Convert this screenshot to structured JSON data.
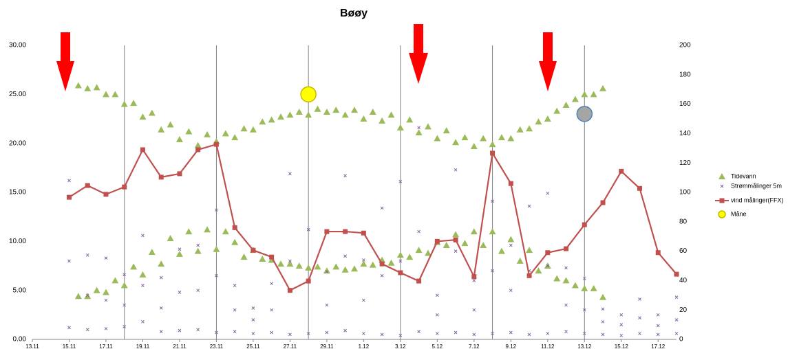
{
  "chart_data": {
    "type": "line",
    "title": "Bøøy",
    "xlim": [
      0,
      35
    ],
    "xticks": [
      {
        "value": 0,
        "label": "13.11"
      },
      {
        "value": 2,
        "label": "15.11"
      },
      {
        "value": 4,
        "label": "17.11"
      },
      {
        "value": 6,
        "label": "19.11"
      },
      {
        "value": 8,
        "label": "21.11"
      },
      {
        "value": 10,
        "label": "23.11"
      },
      {
        "value": 12,
        "label": "25.11"
      },
      {
        "value": 14,
        "label": "27.11"
      },
      {
        "value": 16,
        "label": "29.11"
      },
      {
        "value": 18,
        "label": "1.12"
      },
      {
        "value": 20,
        "label": "3.12"
      },
      {
        "value": 22,
        "label": "5.12"
      },
      {
        "value": 24,
        "label": "7.12"
      },
      {
        "value": 26,
        "label": "9.12"
      },
      {
        "value": 28,
        "label": "11.12"
      },
      {
        "value": 30,
        "label": "13.12"
      },
      {
        "value": 32,
        "label": "15.12"
      },
      {
        "value": 34,
        "label": "17.12"
      }
    ],
    "xgrid": [
      5,
      10,
      15,
      20,
      25,
      30
    ],
    "ylim": [
      0,
      30
    ],
    "yticks": [
      {
        "value": 0,
        "label": "0.00"
      },
      {
        "value": 5,
        "label": "5.00"
      },
      {
        "value": 10,
        "label": "10.00"
      },
      {
        "value": 15,
        "label": "15.00"
      },
      {
        "value": 20,
        "label": "20.00"
      },
      {
        "value": 25,
        "label": "25.00"
      },
      {
        "value": 30,
        "label": "30.00"
      }
    ],
    "y2lim": [
      0,
      200
    ],
    "y2ticks": [
      0,
      20,
      40,
      60,
      80,
      100,
      120,
      140,
      160,
      180,
      200
    ],
    "series": [
      {
        "name": "Tidevann",
        "type": "scatter",
        "marker": "triangle",
        "color": "#9bbb59",
        "x": [
          2.5,
          3,
          3.5,
          4,
          4.5,
          5,
          5.5,
          6,
          6.5,
          7,
          7.5,
          8,
          8.5,
          9,
          9.5,
          10,
          10.5,
          11,
          11.5,
          12,
          12.5,
          13,
          13.5,
          14,
          14.5,
          15,
          15.5,
          16,
          16.5,
          17,
          17.5,
          18,
          18.5,
          19,
          19.5,
          20,
          20.5,
          21,
          21.5,
          22,
          22.5,
          23,
          23.5,
          24,
          24.5,
          25,
          25.5,
          26,
          26.5,
          27,
          27.5,
          28,
          28.5,
          29,
          29.5,
          30,
          30.5,
          31,
          2.5,
          3,
          3.5,
          4,
          4.5,
          5,
          5.5,
          6,
          6.5,
          7,
          7.5,
          8,
          8.5,
          9,
          9.5,
          10,
          10.5,
          11,
          11.5,
          12,
          12.5,
          13,
          13.5,
          14,
          14.5,
          15,
          15.5,
          16,
          16.5,
          17,
          17.5,
          18,
          18.5,
          19,
          19.5,
          20,
          20.5,
          21,
          21.5,
          22,
          22.5,
          23,
          23.5,
          24,
          24.5,
          25,
          25.5,
          26,
          26.5,
          27,
          27.5,
          28,
          28.5,
          29,
          29.5,
          30,
          30.5,
          31
        ],
        "values": [
          25.9,
          25.6,
          25.7,
          25.0,
          25.0,
          24.0,
          24.1,
          22.7,
          23.1,
          21.4,
          21.9,
          20.4,
          21.2,
          19.8,
          20.9,
          20.2,
          21.0,
          20.6,
          21.5,
          21.4,
          22.2,
          22.4,
          22.7,
          22.9,
          23.2,
          22.9,
          23.5,
          23.2,
          23.4,
          22.9,
          23.4,
          22.5,
          23.2,
          22.3,
          22.9,
          21.6,
          22.4,
          21.1,
          21.7,
          20.5,
          21.3,
          20.1,
          20.6,
          19.7,
          20.5,
          19.9,
          20.6,
          20.5,
          21.4,
          21.5,
          22.2,
          22.5,
          23.3,
          23.9,
          24.5,
          25.0,
          25.0,
          25.6,
          4.4,
          4.4,
          5.0,
          4.8,
          6.0,
          5.5,
          7.4,
          6.6,
          8.9,
          7.7,
          10.3,
          8.7,
          11.0,
          9.0,
          11.2,
          9.2,
          11.0,
          9.9,
          8.4,
          9.1,
          8.2,
          8.1,
          7.7,
          7.7,
          7.5,
          7.3,
          7.4,
          7.0,
          7.4,
          7.1,
          7.2,
          7.7,
          7.6,
          8.1,
          7.8,
          8.6,
          8.4,
          9.1,
          8.8,
          9.9,
          9.6,
          10.7,
          9.8,
          11.0,
          9.6,
          11.0,
          9.0,
          10.2,
          8.0,
          9.1,
          7.0,
          7.5,
          6.2,
          6.0,
          5.5,
          5.2,
          5.2,
          4.3
        ]
      },
      {
        "name": "Strømmålinger 5m",
        "type": "scatter",
        "marker": "x",
        "color": "#8064a2",
        "x": [
          2,
          2,
          2,
          3,
          3,
          3,
          4,
          4,
          4,
          5,
          5,
          5,
          6,
          6,
          6,
          7,
          7,
          7,
          8,
          8,
          8,
          9,
          9,
          9,
          10,
          10,
          10,
          11,
          11,
          11,
          12,
          12,
          12,
          13,
          13,
          13,
          14,
          14,
          14,
          15,
          15,
          15,
          16,
          16,
          16,
          17,
          17,
          17,
          18,
          18,
          18,
          19,
          19,
          19,
          20,
          20,
          20,
          21,
          21,
          21,
          22,
          22,
          22,
          23,
          23,
          23,
          24,
          24,
          24,
          25,
          25,
          25,
          26,
          26,
          26,
          27,
          27,
          27,
          28,
          28,
          28,
          29,
          29,
          29,
          30,
          30,
          30,
          31,
          31,
          31,
          32,
          32,
          32,
          33,
          33,
          33,
          34,
          34,
          34,
          35,
          35,
          35
        ],
        "values": [
          16.2,
          8.0,
          1.2,
          8.6,
          4.5,
          1.0,
          8.3,
          4.0,
          1.1,
          6.6,
          3.5,
          1.3,
          10.6,
          5.5,
          1.8,
          6.3,
          3.2,
          0.8,
          9.2,
          4.8,
          0.9,
          9.6,
          5.0,
          1.0,
          13.2,
          6.5,
          0.7,
          5.5,
          3.0,
          0.8,
          3.2,
          2.0,
          0.6,
          5.7,
          3.0,
          0.7,
          16.9,
          8.0,
          0.5,
          11.2,
          6.0,
          0.6,
          6.9,
          3.5,
          0.7,
          16.7,
          8.5,
          0.9,
          8.1,
          4.0,
          0.6,
          13.4,
          6.5,
          0.5,
          16.1,
          8.0,
          0.4,
          21.6,
          11.0,
          0.8,
          4.5,
          2.5,
          0.6,
          17.3,
          9.0,
          0.7,
          6.0,
          3.0,
          0.5,
          14.1,
          7.0,
          0.6,
          9.6,
          5.0,
          0.7,
          13.6,
          7.0,
          0.5,
          14.9,
          7.5,
          0.6,
          7.3,
          3.5,
          0.8,
          6.2,
          3.0,
          0.6,
          3.1,
          1.8,
          0.5,
          2.5,
          1.5,
          0.4,
          4.1,
          2.2,
          0.6,
          2.5,
          1.4,
          0.5,
          4.3,
          2.0,
          0.6
        ]
      },
      {
        "name": "vind målinger(FFX)",
        "type": "line",
        "marker": "square",
        "color": "#c0504d",
        "x": [
          2,
          3,
          4,
          5,
          6,
          7,
          8,
          9,
          10,
          11,
          12,
          13,
          14,
          15,
          16,
          17,
          18,
          19,
          20,
          21,
          22,
          23,
          24,
          25,
          26,
          27,
          28,
          29,
          30,
          31,
          32,
          33,
          34,
          35
        ],
        "values": [
          14.5,
          15.7,
          14.8,
          15.55,
          19.35,
          16.55,
          16.9,
          19.35,
          19.9,
          11.4,
          9.1,
          8.4,
          5.0,
          5.95,
          11.0,
          11.0,
          10.85,
          7.7,
          6.8,
          5.95,
          10.0,
          10.15,
          6.4,
          19.0,
          15.9,
          6.5,
          8.85,
          9.25,
          11.7,
          13.95,
          17.15,
          15.4,
          8.85,
          6.65
        ]
      },
      {
        "name": "Måne",
        "type": "scatter",
        "marker": "circle",
        "color": "#ffff00",
        "colors": [
          "#ffff00",
          "#a5a5a5"
        ],
        "x": [
          15,
          30
        ],
        "values": [
          25,
          23
        ]
      }
    ]
  }
}
